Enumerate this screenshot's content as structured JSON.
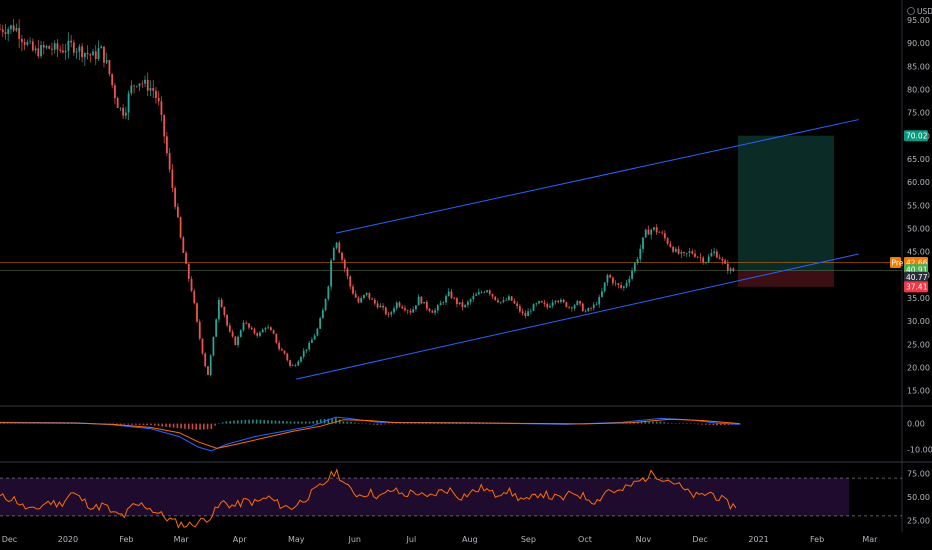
{
  "currency": "USD",
  "colors": {
    "background": "#000000",
    "up": "#26a69a",
    "down": "#ef5350",
    "channel": "#2962ff",
    "price_line": "#f57c00",
    "support_line": "#607d50",
    "target_zone": "#0b2b26",
    "stop_zone": "#3b0f14",
    "macd_line": "#2962ff",
    "signal_line": "#ff6d00",
    "rsi_line": "#ff6d00",
    "rsi_band": "#1e0b2e",
    "pre_tag": "#f57c00"
  },
  "chart_data": [
    {
      "type": "candlestick",
      "ylim": [
        13,
        98
      ],
      "y_ticks": [
        "95.00",
        "90.00",
        "85.00",
        "80.00",
        "75.00",
        "70.00",
        "65.00",
        "60.00",
        "55.00",
        "50.00",
        "45.00",
        "40.00",
        "35.00",
        "30.00",
        "25.00",
        "20.00",
        "15.00"
      ],
      "y_tick_values": [
        95,
        90,
        85,
        80,
        75,
        70,
        65,
        60,
        55,
        50,
        45,
        40,
        35,
        30,
        25,
        20,
        15
      ],
      "x_ticks": [
        "Dec",
        "2020",
        "Feb",
        "Mar",
        "Apr",
        "May",
        "Jun",
        "Jul",
        "Aug",
        "Sep",
        "Oct",
        "Nov",
        "Dec",
        "2021",
        "Feb",
        "Mar"
      ],
      "x_tick_days": [
        5,
        36,
        67,
        96,
        127,
        157,
        188,
        218,
        249,
        280,
        310,
        341,
        371,
        402,
        433,
        461
      ],
      "x_range_days": [
        0,
        478
      ],
      "price_series": [
        [
          0,
          93
        ],
        [
          8,
          93.5
        ],
        [
          12,
          91
        ],
        [
          18,
          88
        ],
        [
          25,
          89
        ],
        [
          32,
          88.5
        ],
        [
          38,
          89.5
        ],
        [
          45,
          88
        ],
        [
          50,
          87
        ],
        [
          53,
          89
        ],
        [
          57,
          85
        ],
        [
          60,
          80
        ],
        [
          63,
          76
        ],
        [
          66,
          75
        ],
        [
          69,
          80
        ],
        [
          73,
          82
        ],
        [
          77,
          81
        ],
        [
          81,
          80
        ],
        [
          84,
          77
        ],
        [
          87,
          70
        ],
        [
          90,
          62
        ],
        [
          93,
          55
        ],
        [
          96,
          47
        ],
        [
          99,
          41
        ],
        [
          102,
          36
        ],
        [
          105,
          28
        ],
        [
          108,
          22
        ],
        [
          110,
          18
        ],
        [
          113,
          26
        ],
        [
          116,
          35
        ],
        [
          118,
          33
        ],
        [
          121,
          28
        ],
        [
          125,
          25
        ],
        [
          129,
          30
        ],
        [
          133,
          28
        ],
        [
          137,
          27
        ],
        [
          141,
          29
        ],
        [
          145,
          27
        ],
        [
          148,
          24
        ],
        [
          151,
          23
        ],
        [
          154,
          20
        ],
        [
          157,
          21
        ],
        [
          160,
          23
        ],
        [
          164,
          25
        ],
        [
          168,
          28
        ],
        [
          171,
          32
        ],
        [
          174,
          38
        ],
        [
          176,
          45
        ],
        [
          178,
          48
        ],
        [
          180,
          45
        ],
        [
          183,
          41
        ],
        [
          186,
          37
        ],
        [
          190,
          34
        ],
        [
          194,
          36
        ],
        [
          198,
          34
        ],
        [
          202,
          33
        ],
        [
          206,
          31
        ],
        [
          210,
          34
        ],
        [
          214,
          33
        ],
        [
          218,
          32
        ],
        [
          222,
          35
        ],
        [
          226,
          33
        ],
        [
          230,
          32
        ],
        [
          234,
          34
        ],
        [
          238,
          36
        ],
        [
          242,
          34
        ],
        [
          246,
          33
        ],
        [
          250,
          35
        ],
        [
          254,
          36
        ],
        [
          258,
          37
        ],
        [
          262,
          35
        ],
        [
          266,
          34
        ],
        [
          270,
          35
        ],
        [
          274,
          33
        ],
        [
          278,
          31
        ],
        [
          282,
          33
        ],
        [
          286,
          34
        ],
        [
          290,
          33
        ],
        [
          294,
          35
        ],
        [
          298,
          34
        ],
        [
          302,
          33
        ],
        [
          306,
          34
        ],
        [
          310,
          32
        ],
        [
          314,
          33
        ],
        [
          318,
          35
        ],
        [
          322,
          40
        ],
        [
          326,
          38
        ],
        [
          330,
          37
        ],
        [
          334,
          40
        ],
        [
          338,
          44
        ],
        [
          342,
          49
        ],
        [
          346,
          50
        ],
        [
          350,
          49
        ],
        [
          354,
          47
        ],
        [
          358,
          45
        ],
        [
          362,
          44
        ],
        [
          366,
          45
        ],
        [
          370,
          44
        ],
        [
          374,
          43
        ],
        [
          378,
          45
        ],
        [
          381,
          44
        ],
        [
          384,
          42
        ],
        [
          387,
          41
        ],
        [
          390,
          40.8
        ]
      ],
      "channel_lower": {
        "x": [
          157,
          455
        ],
        "y": [
          17.5,
          44.5
        ]
      },
      "channel_upper": {
        "x": [
          178,
          455
        ],
        "y": [
          49,
          73.5
        ]
      },
      "horizontal_lines": [
        42.66,
        40.91
      ],
      "position": {
        "x_start_day": 391,
        "x_end_day": 442,
        "entry": 40.91,
        "target": 70.02,
        "stop": 37.41
      },
      "price_tags": [
        {
          "text": "70.02",
          "value": 70.02,
          "color": "#089981"
        },
        {
          "text": "Pre",
          "value": 42.66,
          "color": "#f57c00"
        },
        {
          "text": "42.66",
          "value": 42.66,
          "color": "#f57c00"
        },
        {
          "text": "40.91",
          "value": 40.91,
          "color": "#4caf50"
        },
        {
          "text": "40.77",
          "value": 40.77,
          "color": "#2a2e39"
        },
        {
          "text": "37.41",
          "value": 37.41,
          "color": "#f23645"
        }
      ]
    },
    {
      "type": "line",
      "name": "macd",
      "ylim": [
        -14,
        6
      ],
      "y_ticks": [
        "0.00",
        "-10.00"
      ],
      "y_tick_values": [
        0,
        -10
      ],
      "macd": [
        [
          0,
          0.5
        ],
        [
          40,
          0.3
        ],
        [
          60,
          -0.5
        ],
        [
          80,
          -2
        ],
        [
          95,
          -5
        ],
        [
          105,
          -9
        ],
        [
          112,
          -10.5
        ],
        [
          120,
          -8
        ],
        [
          135,
          -5
        ],
        [
          150,
          -3
        ],
        [
          165,
          -1
        ],
        [
          178,
          2.5
        ],
        [
          185,
          2
        ],
        [
          200,
          0.5
        ],
        [
          250,
          0.3
        ],
        [
          300,
          -0.3
        ],
        [
          330,
          0.5
        ],
        [
          350,
          2
        ],
        [
          365,
          1.5
        ],
        [
          380,
          0.2
        ],
        [
          392,
          -0.3
        ]
      ],
      "signal": [
        [
          0,
          0.3
        ],
        [
          40,
          0.2
        ],
        [
          60,
          -0.3
        ],
        [
          80,
          -1.5
        ],
        [
          95,
          -3.5
        ],
        [
          105,
          -7
        ],
        [
          115,
          -9.5
        ],
        [
          125,
          -8
        ],
        [
          140,
          -5.5
        ],
        [
          155,
          -3
        ],
        [
          170,
          -1
        ],
        [
          182,
          1.5
        ],
        [
          195,
          1.2
        ],
        [
          210,
          0.4
        ],
        [
          260,
          0.2
        ],
        [
          310,
          -0.1
        ],
        [
          335,
          0.4
        ],
        [
          355,
          1.7
        ],
        [
          372,
          1.2
        ],
        [
          392,
          0
        ]
      ]
    },
    {
      "type": "line",
      "name": "rsi",
      "ylim": [
        15,
        85
      ],
      "y_ticks": [
        "75.00",
        "50.00",
        "25.00"
      ],
      "y_tick_values": [
        75,
        50,
        25
      ],
      "band": [
        30,
        70
      ],
      "rsi": [
        [
          0,
          50
        ],
        [
          8,
          48
        ],
        [
          12,
          40
        ],
        [
          18,
          35
        ],
        [
          25,
          45
        ],
        [
          32,
          42
        ],
        [
          38,
          55
        ],
        [
          45,
          45
        ],
        [
          50,
          38
        ],
        [
          55,
          42
        ],
        [
          60,
          32
        ],
        [
          66,
          30
        ],
        [
          70,
          40
        ],
        [
          76,
          42
        ],
        [
          82,
          35
        ],
        [
          88,
          28
        ],
        [
          94,
          22
        ],
        [
          100,
          20
        ],
        [
          106,
          24
        ],
        [
          112,
          30
        ],
        [
          118,
          45
        ],
        [
          124,
          40
        ],
        [
          130,
          46
        ],
        [
          136,
          44
        ],
        [
          142,
          50
        ],
        [
          148,
          42
        ],
        [
          154,
          38
        ],
        [
          160,
          46
        ],
        [
          166,
          55
        ],
        [
          172,
          65
        ],
        [
          178,
          78
        ],
        [
          184,
          60
        ],
        [
          190,
          52
        ],
        [
          196,
          55
        ],
        [
          202,
          50
        ],
        [
          208,
          58
        ],
        [
          214,
          52
        ],
        [
          220,
          56
        ],
        [
          226,
          48
        ],
        [
          232,
          55
        ],
        [
          238,
          58
        ],
        [
          244,
          50
        ],
        [
          250,
          55
        ],
        [
          256,
          60
        ],
        [
          262,
          52
        ],
        [
          268,
          58
        ],
        [
          274,
          50
        ],
        [
          280,
          45
        ],
        [
          286,
          55
        ],
        [
          292,
          50
        ],
        [
          298,
          48
        ],
        [
          304,
          55
        ],
        [
          310,
          50
        ],
        [
          316,
          45
        ],
        [
          322,
          58
        ],
        [
          328,
          55
        ],
        [
          334,
          62
        ],
        [
          340,
          68
        ],
        [
          346,
          75
        ],
        [
          352,
          70
        ],
        [
          358,
          65
        ],
        [
          364,
          55
        ],
        [
          370,
          50
        ],
        [
          376,
          55
        ],
        [
          382,
          48
        ],
        [
          386,
          42
        ],
        [
          390,
          40
        ]
      ]
    }
  ]
}
